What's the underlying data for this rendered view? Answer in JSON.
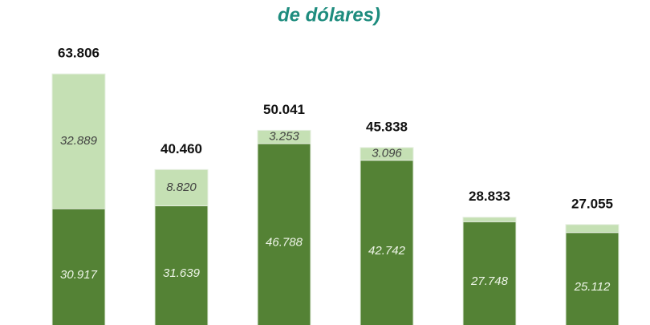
{
  "chart_data": {
    "type": "stacked_bar",
    "title": "de dólares)",
    "categories": [
      null,
      null,
      null,
      null,
      null,
      null
    ],
    "series": [
      {
        "color": "#548235",
        "values": [
          30917,
          31639,
          46788,
          42742,
          27748,
          25112
        ],
        "value_labels": [
          "30.917",
          "31.639",
          "46.788",
          "42.742",
          "27.748",
          "25.112"
        ]
      },
      {
        "color": "#c5e0b4",
        "values": [
          32889,
          8820,
          3253,
          3096,
          1085,
          1943
        ],
        "value_labels": [
          "32.889",
          "8.820",
          "3.253",
          "3.096",
          null,
          null
        ]
      }
    ],
    "totals": {
      "values": [
        63806,
        40460,
        50041,
        45838,
        28833,
        27055
      ],
      "value_labels": [
        "63.806",
        "40.460",
        "50.041",
        "45.838",
        "28.833",
        "27.055"
      ]
    }
  }
}
